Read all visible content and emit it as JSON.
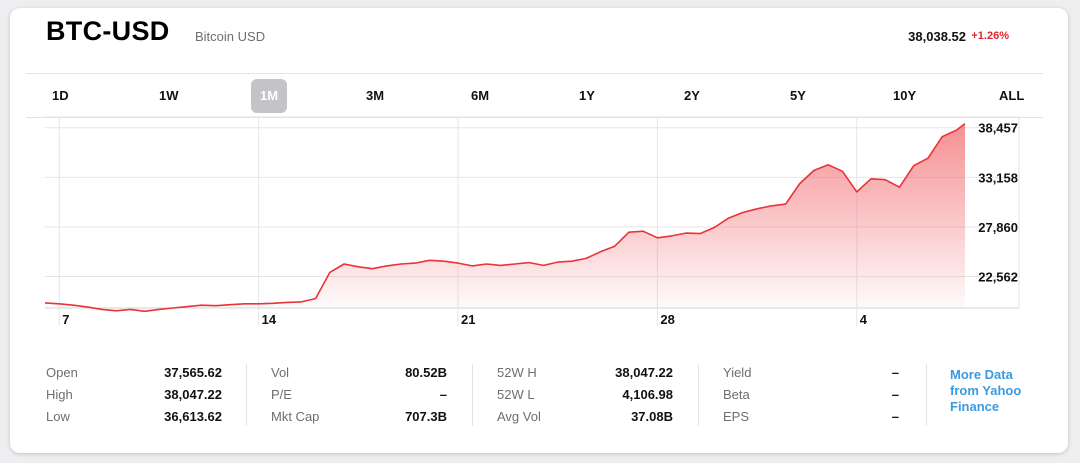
{
  "header": {
    "symbol": "BTC-USD",
    "name": "Bitcoin USD",
    "price": "38,038.52",
    "change": "+1.26%"
  },
  "tabs": [
    {
      "label": "1D",
      "active": false
    },
    {
      "label": "1W",
      "active": false
    },
    {
      "label": "1M",
      "active": true
    },
    {
      "label": "3M",
      "active": false
    },
    {
      "label": "6M",
      "active": false
    },
    {
      "label": "1Y",
      "active": false
    },
    {
      "label": "2Y",
      "active": false
    },
    {
      "label": "5Y",
      "active": false
    },
    {
      "label": "10Y",
      "active": false
    },
    {
      "label": "ALL",
      "active": false
    }
  ],
  "colors": {
    "line": "#e8333a",
    "accent": "#3a9be0",
    "change": "#e0262f"
  },
  "chart_data": {
    "type": "area",
    "x_ticks": [
      "7",
      "14",
      "21",
      "28",
      "4"
    ],
    "y_ticks": [
      "38,457",
      "33,158",
      "27,860",
      "22,562"
    ],
    "y_tick_values": [
      38457,
      33158,
      27860,
      22562
    ],
    "ylim": [
      19200,
      39600
    ],
    "x_range": [
      6.5,
      38.8
    ],
    "grid": true,
    "series": [
      {
        "x": [
          6.5,
          7,
          7.5,
          8,
          8.5,
          9,
          9.5,
          10,
          10.5,
          11,
          11.5,
          12,
          12.5,
          13,
          13.5,
          14,
          14.5,
          15,
          15.5,
          16,
          16.5,
          17,
          17.5,
          18,
          18.5,
          19,
          19.5,
          20,
          20.5,
          21,
          21.5,
          22,
          22.5,
          23,
          23.5,
          24,
          24.5,
          25,
          25.5,
          26,
          26.5,
          27,
          27.5,
          28,
          28.5,
          29,
          29.5,
          30,
          30.5,
          31,
          31.5,
          32,
          32.5,
          33,
          33.5,
          34,
          34.5,
          35,
          35.5,
          36,
          36.5,
          37,
          37.5,
          38,
          38.5,
          38.8
        ],
        "y": [
          19750,
          19650,
          19500,
          19300,
          19050,
          18900,
          19050,
          18850,
          19050,
          19200,
          19350,
          19500,
          19450,
          19550,
          19650,
          19650,
          19700,
          19800,
          19850,
          20200,
          23000,
          23900,
          23600,
          23400,
          23700,
          23900,
          24000,
          24300,
          24200,
          24000,
          23700,
          23900,
          23750,
          23900,
          24050,
          23750,
          24100,
          24200,
          24500,
          25200,
          25800,
          27300,
          27400,
          26700,
          26900,
          27200,
          27150,
          27800,
          28800,
          29400,
          29800,
          30100,
          30300,
          32500,
          33900,
          34500,
          33800,
          31600,
          33000,
          32900,
          32100,
          34400,
          35200,
          37500,
          38200,
          38900
        ]
      }
    ]
  },
  "stats": [
    [
      {
        "label": "Open",
        "value": "37,565.62"
      },
      {
        "label": "High",
        "value": "38,047.22"
      },
      {
        "label": "Low",
        "value": "36,613.62"
      }
    ],
    [
      {
        "label": "Vol",
        "value": "80.52B"
      },
      {
        "label": "P/E",
        "value": "–"
      },
      {
        "label": "Mkt Cap",
        "value": "707.3B"
      }
    ],
    [
      {
        "label": "52W H",
        "value": "38,047.22"
      },
      {
        "label": "52W L",
        "value": "4,106.98"
      },
      {
        "label": "Avg Vol",
        "value": "37.08B"
      }
    ],
    [
      {
        "label": "Yield",
        "value": "–"
      },
      {
        "label": "Beta",
        "value": "–"
      },
      {
        "label": "EPS",
        "value": "–"
      }
    ]
  ],
  "more_link": "More Data from Yahoo Finance"
}
